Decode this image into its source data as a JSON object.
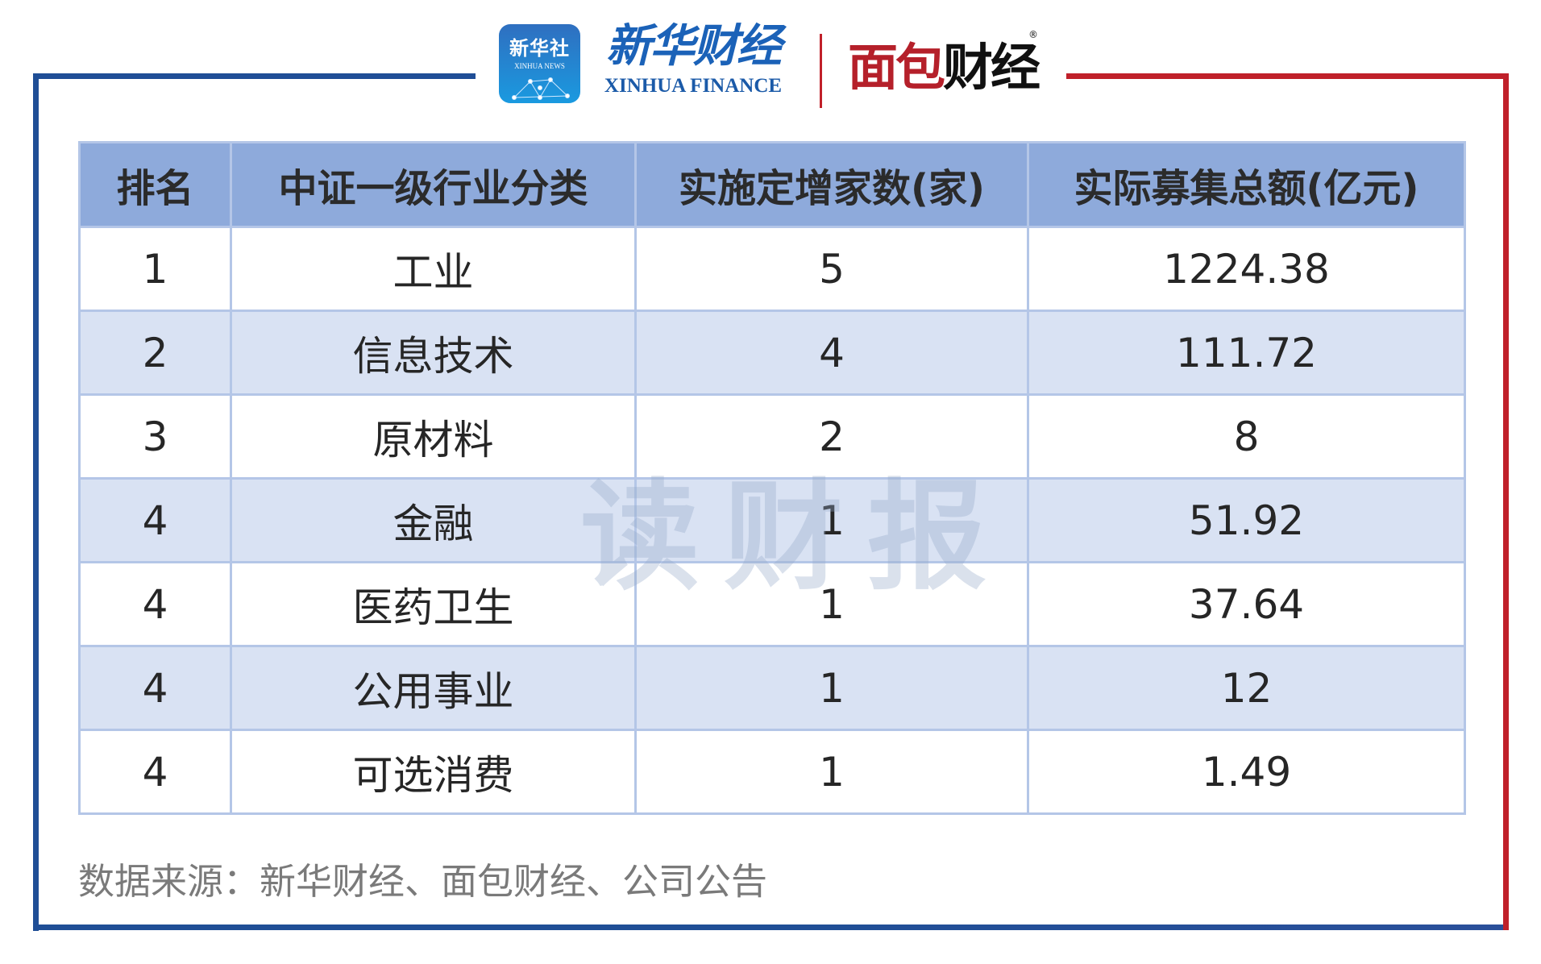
{
  "header": {
    "logo_xinhua_cn": "新华社",
    "logo_xinhua_en": "XINHUA NEWS",
    "logo_xhf_cn": "新华财经",
    "logo_xhf_en": "XINHUA FINANCE",
    "logo_mbcj": "面包财经",
    "colors": {
      "frame_left": "#1f4e96",
      "frame_right": "#c0202a"
    }
  },
  "table": {
    "columns": [
      "排名",
      "中证一级行业分类",
      "实施定增家数(家)",
      "实际募集总额(亿元)"
    ],
    "rows": [
      [
        "1",
        "工业",
        "5",
        "1224.38"
      ],
      [
        "2",
        "信息技术",
        "4",
        "111.72"
      ],
      [
        "3",
        "原材料",
        "2",
        "8"
      ],
      [
        "4",
        "金融",
        "1",
        "51.92"
      ],
      [
        "4",
        "医药卫生",
        "1",
        "37.64"
      ],
      [
        "4",
        "公用事业",
        "1",
        "12"
      ],
      [
        "4",
        "可选消费",
        "1",
        "1.49"
      ]
    ],
    "colors": {
      "header_bg": "#8eaadb",
      "stripe_bg": "#d9e2f3",
      "border": "#b4c6e7"
    }
  },
  "watermark": "读财报",
  "source": "数据来源：新华财经、面包财经、公司公告"
}
